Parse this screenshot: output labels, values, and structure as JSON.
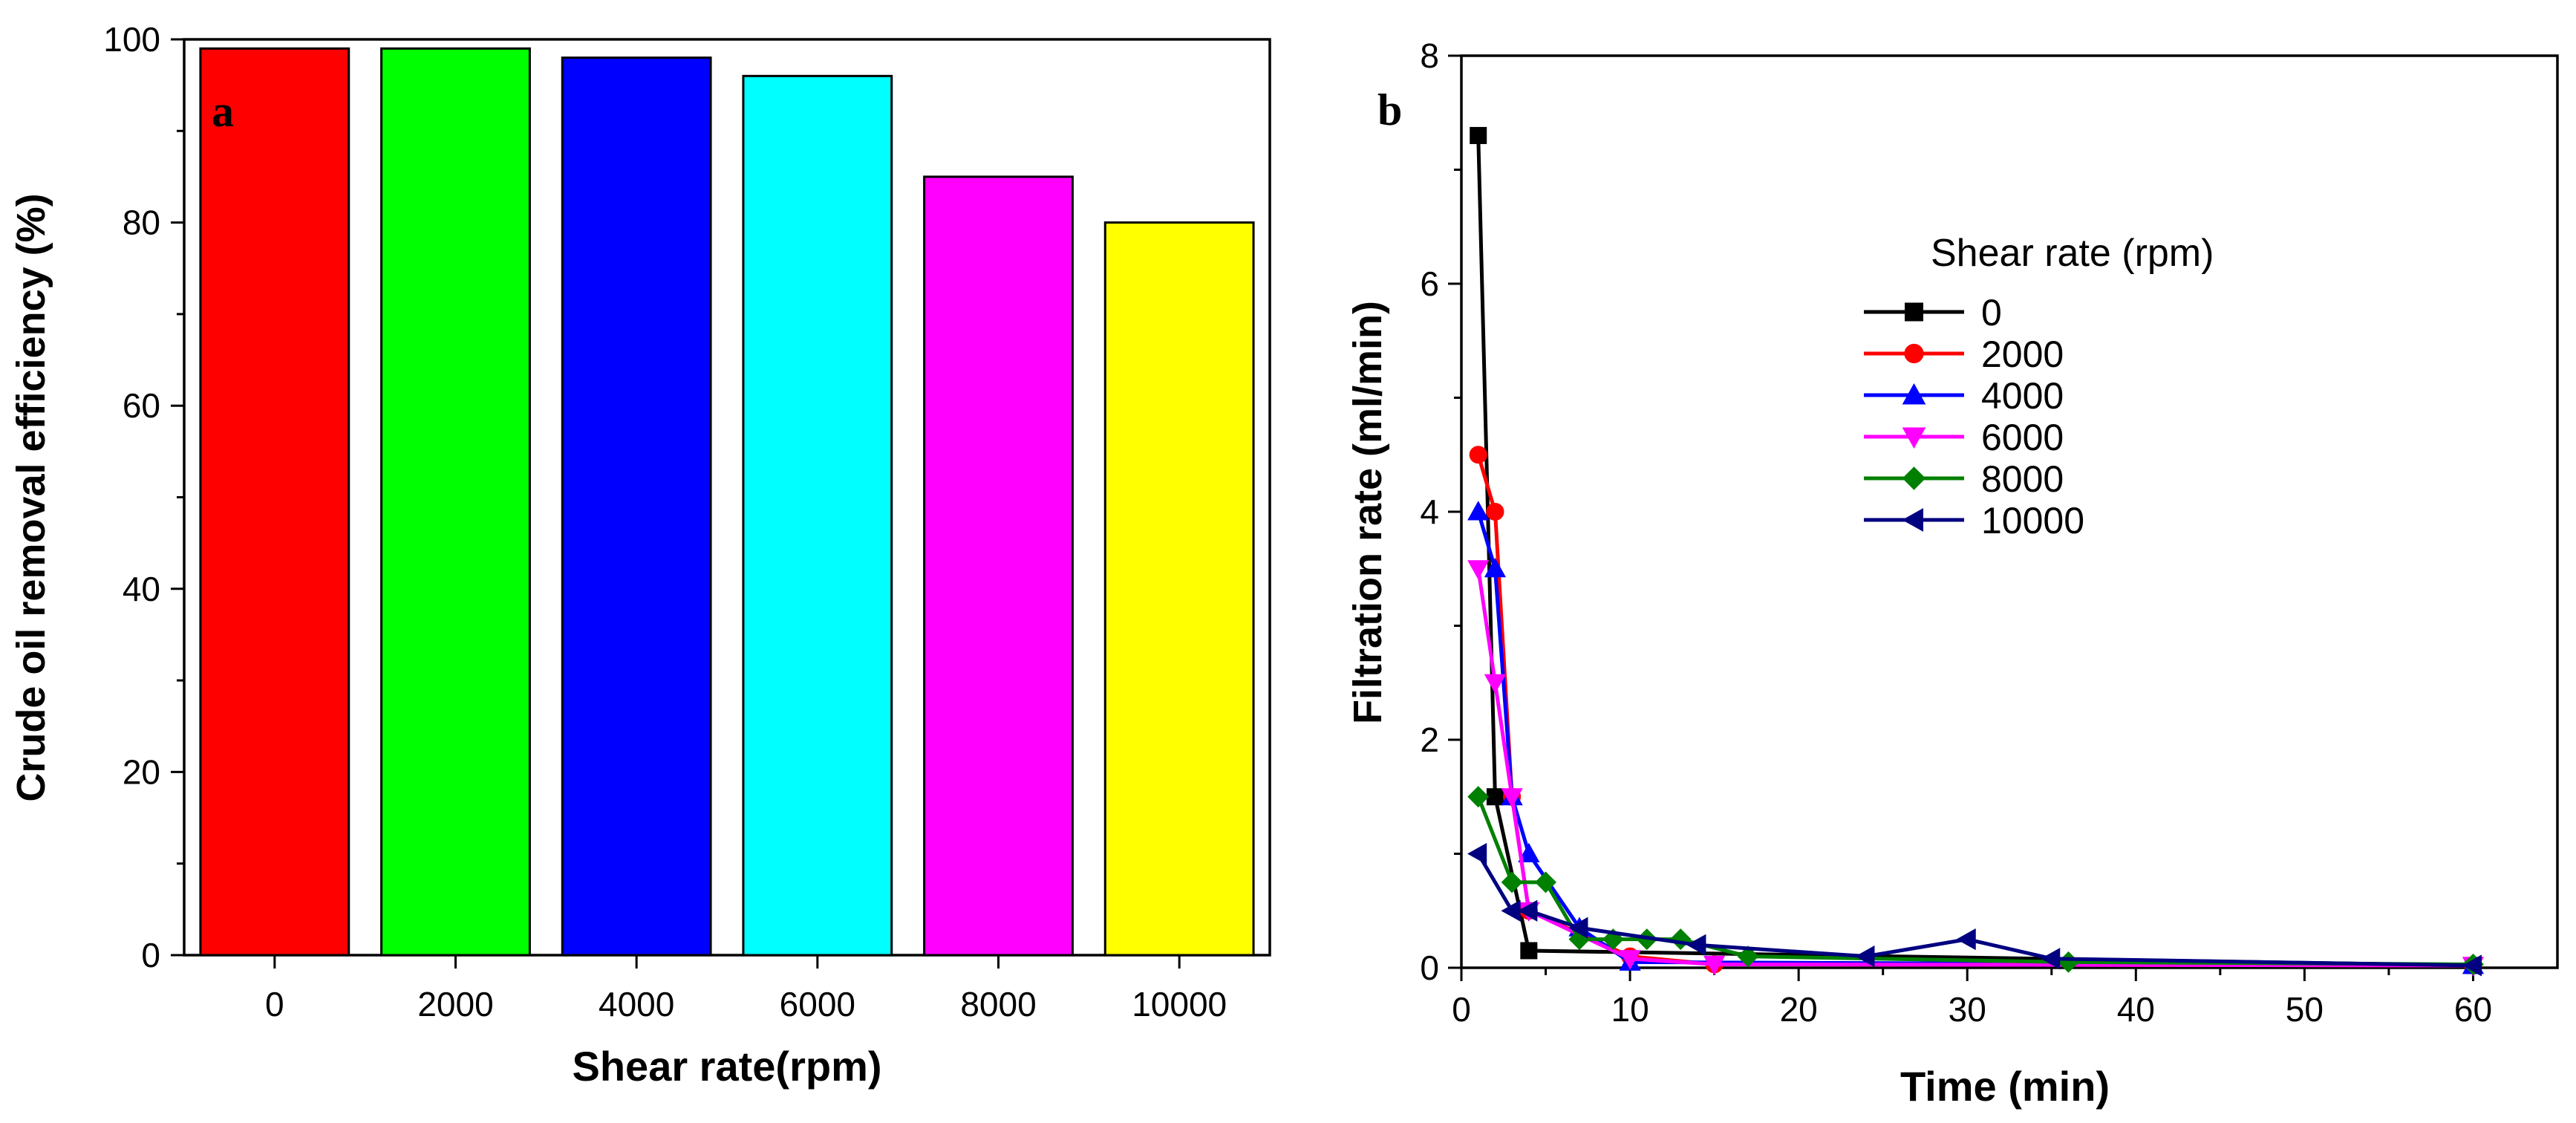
{
  "chart_data": [
    {
      "type": "bar",
      "panel_label": "a",
      "title": "",
      "xlabel": "Shear rate(rpm)",
      "ylabel": "Crude oil removal efficiency (%)",
      "categories": [
        "0",
        "2000",
        "4000",
        "6000",
        "8000",
        "10000"
      ],
      "values": [
        99,
        99,
        98,
        96,
        85,
        80
      ],
      "colors": [
        "#ff0000",
        "#00ff00",
        "#0000ff",
        "#00ffff",
        "#ff00ff",
        "#ffff00"
      ],
      "ylim": [
        0,
        100
      ],
      "yticks": [
        0,
        20,
        40,
        60,
        80,
        100
      ],
      "grid": false,
      "legend": "none"
    },
    {
      "type": "line",
      "panel_label": "b",
      "title": "",
      "xlabel": "Time (min)",
      "ylabel": "Filtration rate (ml/min)",
      "xlim": [
        0,
        65
      ],
      "ylim": [
        0,
        8
      ],
      "xticks": [
        0,
        10,
        20,
        30,
        40,
        50,
        60
      ],
      "yticks": [
        0,
        2,
        4,
        6,
        8
      ],
      "grid": false,
      "legend": "top-right",
      "legend_title": "Shear rate (rpm)",
      "series": [
        {
          "name": "0",
          "color": "#000000",
          "marker": "square",
          "x": [
            1,
            2,
            4,
            60
          ],
          "y": [
            7.3,
            1.5,
            0.15,
            0.02
          ]
        },
        {
          "name": "2000",
          "color": "#ff0000",
          "marker": "circle",
          "x": [
            1,
            2,
            3,
            4,
            10,
            15,
            60
          ],
          "y": [
            4.5,
            4.0,
            1.5,
            0.5,
            0.1,
            0.03,
            0.02
          ]
        },
        {
          "name": "4000",
          "color": "#0000ff",
          "marker": "triangle-up",
          "x": [
            1,
            2,
            3,
            4,
            7,
            10,
            60
          ],
          "y": [
            4.0,
            3.5,
            1.5,
            1.0,
            0.35,
            0.05,
            0.02
          ]
        },
        {
          "name": "6000",
          "color": "#ff00ff",
          "marker": "triangle-down",
          "x": [
            1,
            2,
            3,
            4,
            10,
            15,
            60
          ],
          "y": [
            3.5,
            2.5,
            1.5,
            0.5,
            0.08,
            0.03,
            0.02
          ]
        },
        {
          "name": "8000",
          "color": "#008000",
          "marker": "diamond",
          "x": [
            1,
            3,
            5,
            7,
            9,
            11,
            13,
            17,
            36,
            60
          ],
          "y": [
            1.5,
            0.75,
            0.75,
            0.25,
            0.25,
            0.25,
            0.25,
            0.1,
            0.05,
            0.03
          ]
        },
        {
          "name": "10000",
          "color": "#000080",
          "marker": "triangle-left",
          "x": [
            1,
            3,
            4,
            7,
            14,
            24,
            30,
            35,
            60
          ],
          "y": [
            1.0,
            0.5,
            0.5,
            0.35,
            0.2,
            0.1,
            0.25,
            0.08,
            0.02
          ]
        }
      ]
    }
  ]
}
